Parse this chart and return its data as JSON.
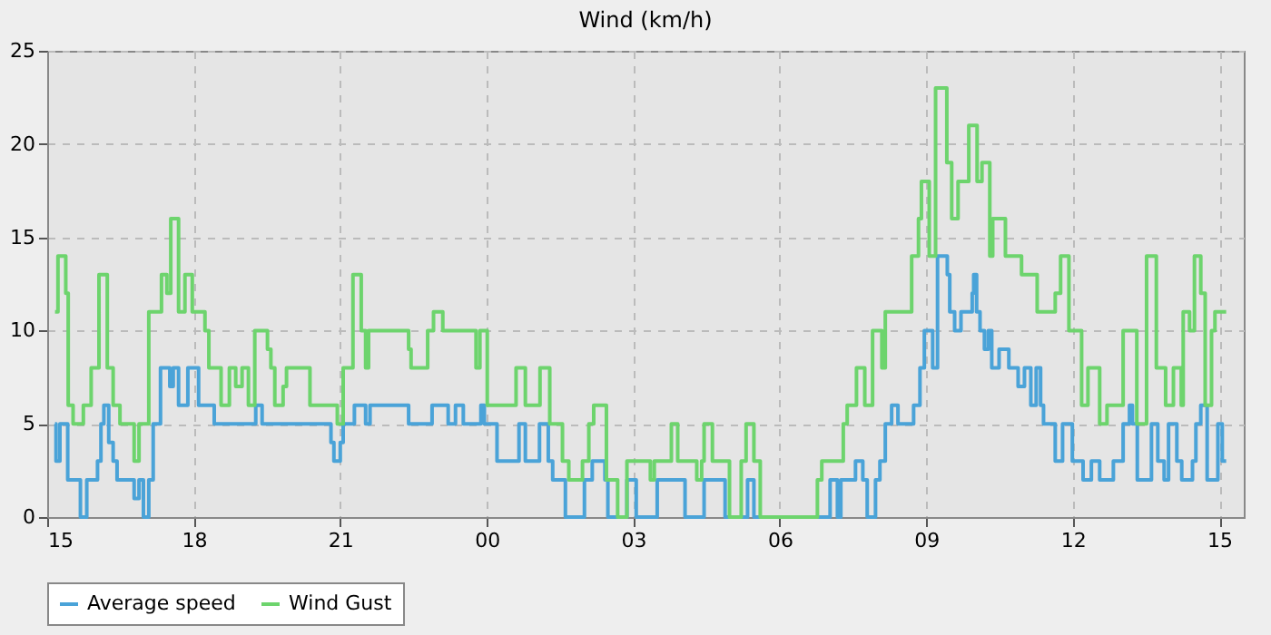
{
  "chart_data": {
    "type": "step",
    "title": "Wind (km/h)",
    "xlim": [
      15,
      39.5
    ],
    "ylim": [
      0,
      25
    ],
    "yticks": [
      0,
      5,
      10,
      15,
      20,
      25
    ],
    "xticks": [
      {
        "value": 15,
        "label": "15"
      },
      {
        "value": 18,
        "label": "18"
      },
      {
        "value": 21,
        "label": "21"
      },
      {
        "value": 24,
        "label": "00"
      },
      {
        "value": 27,
        "label": "03"
      },
      {
        "value": 30,
        "label": "06"
      },
      {
        "value": 33,
        "label": "09"
      },
      {
        "value": 36,
        "label": "12"
      },
      {
        "value": 39,
        "label": "15"
      }
    ],
    "grid": true,
    "legend": "bottom",
    "line_style": "solid",
    "marker": "none",
    "series": [
      {
        "name": "Average speed",
        "color": "#4aa3d8",
        "x": [
          15.16,
          15.18,
          15.26,
          15.42,
          15.68,
          15.81,
          16.03,
          16.1,
          16.16,
          16.26,
          16.35,
          16.43,
          16.78,
          16.88,
          16.97,
          17.08,
          17.17,
          17.32,
          17.51,
          17.58,
          17.69,
          17.88,
          18.1,
          18.42,
          19.27,
          19.4,
          20.81,
          20.87,
          21.0,
          21.06,
          21.29,
          21.52,
          21.61,
          22.4,
          22.88,
          23.21,
          23.36,
          23.52,
          23.88,
          23.95,
          24.21,
          24.66,
          24.79,
          25.08,
          25.26,
          25.35,
          25.61,
          26.0,
          26.16,
          26.42,
          26.48,
          26.87,
          27.06,
          27.49,
          28.06,
          28.45,
          28.88,
          29.34,
          29.47,
          31.03,
          31.18,
          31.25,
          31.55,
          31.7,
          31.79,
          31.96,
          32.05,
          32.16,
          32.29,
          32.42,
          32.74,
          32.87,
          32.96,
          33.13,
          33.23,
          33.43,
          33.48,
          33.58,
          33.71,
          33.94,
          33.97,
          34.03,
          34.1,
          34.19,
          34.27,
          34.34,
          34.49,
          34.69,
          34.88,
          35.01,
          35.14,
          35.25,
          35.34,
          35.4,
          35.64,
          35.79,
          35.99,
          36.21,
          36.38,
          36.55,
          36.83,
          37.03,
          37.16,
          37.22,
          37.32,
          37.61,
          37.74,
          37.87,
          37.96,
          38.13,
          38.23,
          38.45,
          38.52,
          38.62,
          38.75,
          38.97,
          39.06,
          39.14
        ],
        "values": [
          5,
          3,
          5,
          2,
          0,
          2,
          3,
          5,
          6,
          4,
          3,
          2,
          1,
          2,
          0,
          2,
          5,
          8,
          7,
          8,
          6,
          8,
          6,
          5,
          6,
          5,
          4,
          3,
          4,
          5,
          6,
          5,
          6,
          5,
          6,
          5,
          6,
          5,
          6,
          5,
          3,
          5,
          3,
          5,
          3,
          2,
          0,
          2,
          3,
          2,
          0,
          2,
          0,
          2,
          0,
          2,
          0,
          2,
          0,
          2,
          0,
          2,
          3,
          2,
          0,
          2,
          3,
          5,
          6,
          5,
          6,
          8,
          10,
          8,
          14,
          13,
          11,
          10,
          11,
          12,
          13,
          11,
          10,
          9,
          10,
          8,
          9,
          8,
          7,
          8,
          6,
          8,
          6,
          5,
          3,
          5,
          3,
          2,
          3,
          2,
          3,
          5,
          6,
          5,
          2,
          5,
          3,
          2,
          5,
          3,
          2,
          3,
          5,
          6,
          2,
          5,
          3,
          3
        ]
      },
      {
        "name": "Wind Gust",
        "color": "#6dd46d",
        "x": [
          15.16,
          15.22,
          15.38,
          15.43,
          15.53,
          15.74,
          15.9,
          16.06,
          16.23,
          16.35,
          16.49,
          16.78,
          16.88,
          17.08,
          17.34,
          17.45,
          17.53,
          17.69,
          17.82,
          17.97,
          18.23,
          18.31,
          18.56,
          18.73,
          18.86,
          18.99,
          19.12,
          19.25,
          19.51,
          19.58,
          19.66,
          19.83,
          19.9,
          20.38,
          20.94,
          21.06,
          21.26,
          21.43,
          21.52,
          21.58,
          22.4,
          22.45,
          22.79,
          22.91,
          23.1,
          23.78,
          23.86,
          24.01,
          24.6,
          24.79,
          25.09,
          25.29,
          25.55,
          25.68,
          25.96,
          26.09,
          26.19,
          26.45,
          26.68,
          26.87,
          27.35,
          27.43,
          27.78,
          27.91,
          28.3,
          28.4,
          28.45,
          28.62,
          28.97,
          29.21,
          29.31,
          29.47,
          29.6,
          30.77,
          30.86,
          31.3,
          31.38,
          31.57,
          31.74,
          31.9,
          32.09,
          32.16,
          32.7,
          32.84,
          32.9,
          33.06,
          33.19,
          33.42,
          33.52,
          33.65,
          33.87,
          34.04,
          34.14,
          34.3,
          34.36,
          34.62,
          34.95,
          35.27,
          35.64,
          35.75,
          35.92,
          36.18,
          36.31,
          36.55,
          36.7,
          37.03,
          37.31,
          37.51,
          37.71,
          37.9,
          38.06,
          38.22,
          38.26,
          38.39,
          38.49,
          38.62,
          38.71,
          38.84,
          38.91,
          39.14
        ],
        "values": [
          11,
          14,
          12,
          6,
          5,
          6,
          8,
          13,
          8,
          6,
          5,
          3,
          5,
          11,
          13,
          12,
          16,
          11,
          13,
          11,
          10,
          8,
          6,
          8,
          7,
          8,
          6,
          10,
          9,
          8,
          6,
          7,
          8,
          6,
          5,
          8,
          13,
          10,
          8,
          10,
          9,
          8,
          10,
          11,
          10,
          8,
          10,
          6,
          8,
          6,
          8,
          5,
          3,
          2,
          3,
          5,
          6,
          2,
          0,
          3,
          2,
          3,
          5,
          3,
          2,
          3,
          5,
          3,
          0,
          3,
          5,
          3,
          0,
          2,
          3,
          5,
          6,
          8,
          6,
          10,
          8,
          11,
          14,
          16,
          18,
          14,
          23,
          19,
          16,
          18,
          21,
          18,
          19,
          14,
          16,
          14,
          13,
          11,
          12,
          14,
          10,
          6,
          8,
          5,
          6,
          10,
          5,
          14,
          8,
          6,
          8,
          6,
          11,
          10,
          14,
          12,
          6,
          10,
          11,
          11
        ]
      }
    ]
  }
}
